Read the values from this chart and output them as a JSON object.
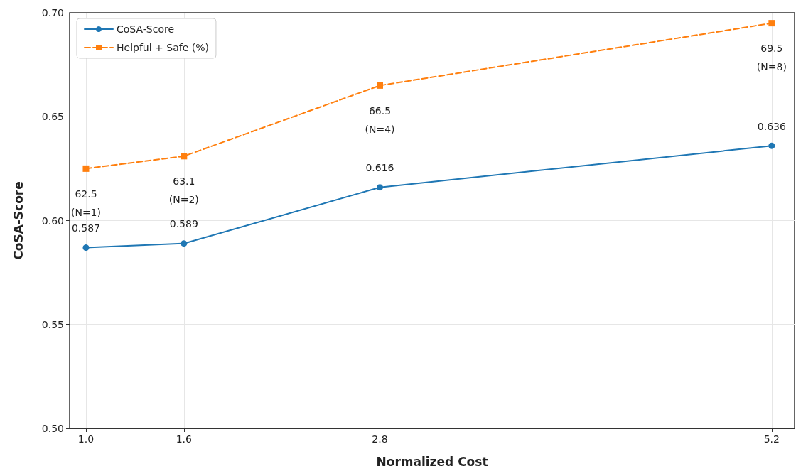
{
  "chart_data": {
    "type": "line",
    "xlabel": "Normalized Cost",
    "ylabel": "CoSA-Score",
    "x": [
      1.0,
      1.6,
      2.8,
      5.2
    ],
    "series": [
      {
        "name": "CoSA-Score",
        "color": "#1f77b4",
        "marker": "circle",
        "line_style": "solid",
        "values": [
          0.587,
          0.589,
          0.616,
          0.636
        ],
        "value_labels": [
          "0.587",
          "0.589",
          "0.616",
          "0.636"
        ]
      },
      {
        "name": "Helpful + Safe (%)",
        "color": "#ff7f0e",
        "marker": "square",
        "line_style": "dashed",
        "axis": "y2",
        "values": [
          62.5,
          63.1,
          66.5,
          69.5
        ],
        "value_labels": [
          "62.5\n(N=1)",
          "63.1\n(N=2)",
          "66.5\n(N=4)",
          "69.5\n(N=8)"
        ]
      }
    ],
    "xlim": [
      0.9,
      5.34
    ],
    "xticks": [
      {
        "value": 1.0,
        "label": "1.0"
      },
      {
        "value": 1.6,
        "label": "1.6"
      },
      {
        "value": 2.8,
        "label": "2.8"
      },
      {
        "value": 5.2,
        "label": "5.2"
      }
    ],
    "ylim": [
      0.5,
      0.7
    ],
    "yticks": [
      {
        "value": 0.5,
        "label": "0.50"
      },
      {
        "value": 0.55,
        "label": "0.55"
      },
      {
        "value": 0.6,
        "label": "0.60"
      },
      {
        "value": 0.65,
        "label": "0.65"
      },
      {
        "value": 0.7,
        "label": "0.70"
      }
    ],
    "y2lim": [
      50,
      70
    ],
    "grid": true,
    "legend": "top left"
  }
}
